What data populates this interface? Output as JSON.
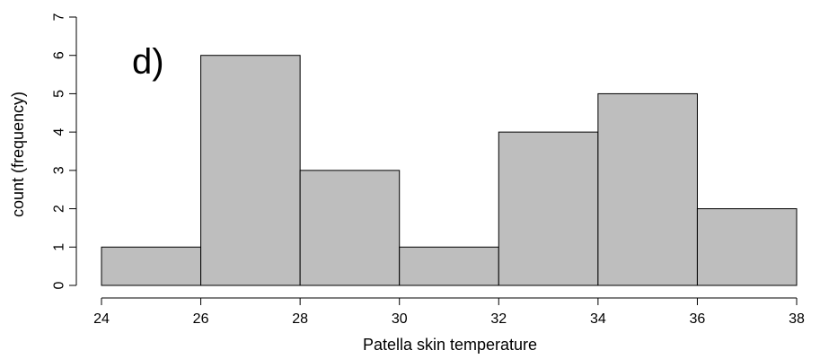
{
  "chart_data": {
    "type": "bar",
    "panel_label": "d)",
    "xlabel": "Patella skin temperature",
    "ylabel": "count (frequency)",
    "bins": [
      {
        "start": 24,
        "end": 26,
        "count": 1
      },
      {
        "start": 26,
        "end": 28,
        "count": 6
      },
      {
        "start": 28,
        "end": 30,
        "count": 3
      },
      {
        "start": 30,
        "end": 32,
        "count": 1
      },
      {
        "start": 32,
        "end": 34,
        "count": 4
      },
      {
        "start": 34,
        "end": 36,
        "count": 5
      },
      {
        "start": 36,
        "end": 38,
        "count": 2
      }
    ],
    "xlim": [
      24,
      38
    ],
    "ylim": [
      0,
      7
    ],
    "xticks": [
      24,
      26,
      28,
      30,
      32,
      34,
      36,
      38
    ],
    "yticks": [
      0,
      1,
      2,
      3,
      4,
      5,
      6,
      7
    ],
    "bar_color": "#bebebe",
    "grid": false
  }
}
